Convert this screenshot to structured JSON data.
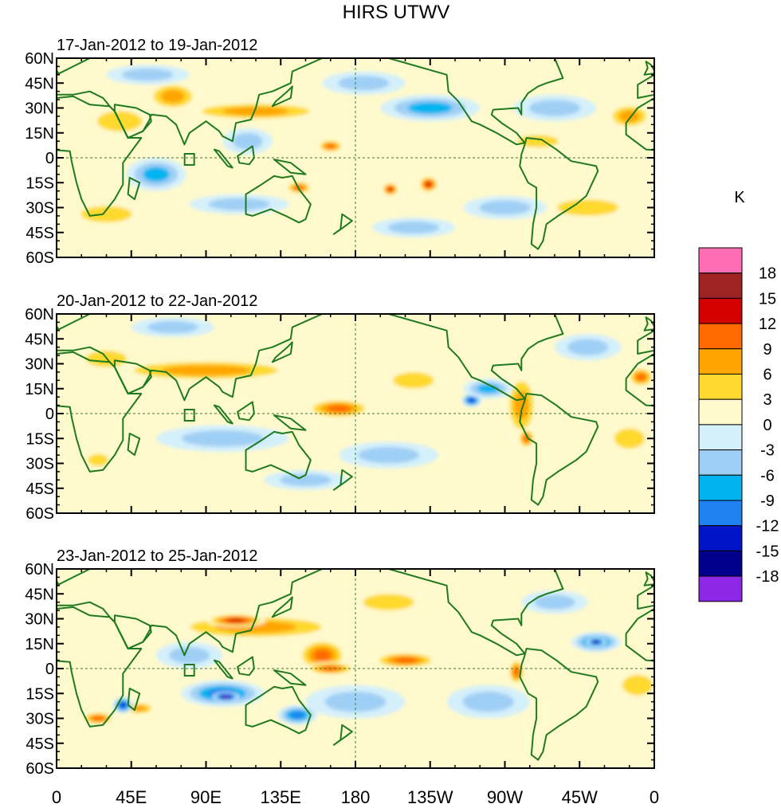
{
  "chart_data": {
    "type": "heatmap",
    "title": "HIRS UTWV",
    "colorbar": {
      "unit_label": "K",
      "levels": [
        "18",
        "15",
        "12",
        "9",
        "6",
        "3",
        "0",
        "-3",
        "-6",
        "-9",
        "-12",
        "-15",
        "-18"
      ],
      "level_values": [
        18,
        15,
        12,
        9,
        6,
        3,
        0,
        -3,
        -6,
        -9,
        -12,
        -15,
        -18
      ],
      "colors": [
        "#ff6eb4",
        "#9e2424",
        "#d40000",
        "#ff6a00",
        "#ffa500",
        "#ffd92f",
        "#fffacd",
        "#d4f0fb",
        "#a0cff5",
        "#00b4f0",
        "#1e82f0",
        "#0014c8",
        "#00008c",
        "#8c28e6"
      ],
      "placement": "right"
    },
    "x_ticks": [
      "0",
      "45E",
      "90E",
      "135E",
      "180",
      "135W",
      "90W",
      "45W",
      "0"
    ],
    "x_tick_lon": [
      0,
      45,
      90,
      135,
      180,
      225,
      270,
      315,
      360
    ],
    "y_ticks": [
      "60N",
      "45N",
      "30N",
      "15N",
      "0",
      "15S",
      "30S",
      "45S",
      "60S"
    ],
    "y_tick_lat": [
      60,
      45,
      30,
      15,
      0,
      -15,
      -30,
      -45,
      -60
    ],
    "xlim": [
      0,
      360
    ],
    "ylim": [
      -60,
      60
    ],
    "panels": [
      {
        "period": "17-Jan-2012 to 19-Jan-2012",
        "anomalies": [
          {
            "lon": 38,
            "lat": 22,
            "rx": 22,
            "ry": 10,
            "v": 5
          },
          {
            "lon": 68,
            "lat": 39,
            "rx": 7,
            "ry": 6,
            "v": 14
          },
          {
            "lon": 70,
            "lat": 37,
            "rx": 16,
            "ry": 9,
            "v": 9
          },
          {
            "lon": 120,
            "lat": 28,
            "rx": 45,
            "ry": 6,
            "v": 7
          },
          {
            "lon": 165,
            "lat": 7,
            "rx": 8,
            "ry": 4,
            "v": 11
          },
          {
            "lon": 146,
            "lat": -18,
            "rx": 8,
            "ry": 4,
            "v": 11
          },
          {
            "lon": 201,
            "lat": -19,
            "rx": 5,
            "ry": 4,
            "v": 13
          },
          {
            "lon": 224,
            "lat": -16,
            "rx": 6,
            "ry": 5,
            "v": 14
          },
          {
            "lon": 290,
            "lat": 10,
            "rx": 20,
            "ry": 6,
            "v": 5
          },
          {
            "lon": 345,
            "lat": 25,
            "rx": 14,
            "ry": 8,
            "v": 7
          },
          {
            "lon": 30,
            "lat": -34,
            "rx": 25,
            "ry": 8,
            "v": 5
          },
          {
            "lon": 320,
            "lat": -30,
            "rx": 30,
            "ry": 8,
            "v": 4
          },
          {
            "lon": 60,
            "lat": -10,
            "rx": 18,
            "ry": 10,
            "v": -7
          },
          {
            "lon": 110,
            "lat": -28,
            "rx": 30,
            "ry": 6,
            "v": -6
          },
          {
            "lon": 225,
            "lat": 30,
            "rx": 30,
            "ry": 8,
            "v": -9
          },
          {
            "lon": 185,
            "lat": 45,
            "rx": 25,
            "ry": 7,
            "v": -6
          },
          {
            "lon": 115,
            "lat": 10,
            "rx": 15,
            "ry": 8,
            "v": -5
          },
          {
            "lon": 55,
            "lat": 50,
            "rx": 25,
            "ry": 6,
            "v": -5
          },
          {
            "lon": 300,
            "lat": 30,
            "rx": 25,
            "ry": 8,
            "v": -5
          },
          {
            "lon": 270,
            "lat": -30,
            "rx": 25,
            "ry": 7,
            "v": -6
          },
          {
            "lon": 215,
            "lat": -42,
            "rx": 25,
            "ry": 6,
            "v": -5
          }
        ]
      },
      {
        "period": "20-Jan-2012 to 22-Jan-2012",
        "anomalies": [
          {
            "lon": 90,
            "lat": 26,
            "rx": 60,
            "ry": 7,
            "v": 8
          },
          {
            "lon": 30,
            "lat": 33,
            "rx": 20,
            "ry": 8,
            "v": 5
          },
          {
            "lon": 170,
            "lat": 3,
            "rx": 20,
            "ry": 6,
            "v": 10
          },
          {
            "lon": 215,
            "lat": 20,
            "rx": 20,
            "ry": 8,
            "v": 6
          },
          {
            "lon": 280,
            "lat": 5,
            "rx": 10,
            "ry": 20,
            "v": 7
          },
          {
            "lon": 283,
            "lat": -15,
            "rx": 5,
            "ry": 6,
            "v": 11
          },
          {
            "lon": 352,
            "lat": 22,
            "rx": 8,
            "ry": 6,
            "v": 10
          },
          {
            "lon": 25,
            "lat": -28,
            "rx": 10,
            "ry": 6,
            "v": 6
          },
          {
            "lon": 345,
            "lat": -15,
            "rx": 15,
            "ry": 10,
            "v": 4
          },
          {
            "lon": 250,
            "lat": 8,
            "rx": 6,
            "ry": 4,
            "v": -13
          },
          {
            "lon": 260,
            "lat": 15,
            "rx": 15,
            "ry": 6,
            "v": -8
          },
          {
            "lon": 100,
            "lat": -15,
            "rx": 40,
            "ry": 8,
            "v": -6
          },
          {
            "lon": 200,
            "lat": -25,
            "rx": 30,
            "ry": 8,
            "v": -5
          },
          {
            "lon": 70,
            "lat": 52,
            "rx": 25,
            "ry": 6,
            "v": -4
          },
          {
            "lon": 320,
            "lat": 40,
            "rx": 20,
            "ry": 8,
            "v": -5
          },
          {
            "lon": 150,
            "lat": -40,
            "rx": 25,
            "ry": 6,
            "v": -5
          }
        ]
      },
      {
        "period": "23-Jan-2012 to 25-Jan-2012",
        "anomalies": [
          {
            "lon": 120,
            "lat": 25,
            "rx": 55,
            "ry": 8,
            "v": 9
          },
          {
            "lon": 108,
            "lat": 29,
            "rx": 18,
            "ry": 4,
            "v": 14
          },
          {
            "lon": 160,
            "lat": 8,
            "rx": 15,
            "ry": 10,
            "v": 10
          },
          {
            "lon": 210,
            "lat": 5,
            "rx": 20,
            "ry": 5,
            "v": 10
          },
          {
            "lon": 165,
            "lat": 0,
            "rx": 15,
            "ry": 4,
            "v": 11
          },
          {
            "lon": 277,
            "lat": -2,
            "rx": 5,
            "ry": 8,
            "v": 12
          },
          {
            "lon": 25,
            "lat": -30,
            "rx": 10,
            "ry": 4,
            "v": 11
          },
          {
            "lon": 50,
            "lat": -24,
            "rx": 10,
            "ry": 4,
            "v": 8
          },
          {
            "lon": 200,
            "lat": 40,
            "rx": 25,
            "ry": 8,
            "v": 5
          },
          {
            "lon": 350,
            "lat": -10,
            "rx": 15,
            "ry": 10,
            "v": 5
          },
          {
            "lon": 325,
            "lat": 16,
            "rx": 15,
            "ry": 6,
            "v": -12
          },
          {
            "lon": 325,
            "lat": 16,
            "rx": 6,
            "ry": 3,
            "v": -16
          },
          {
            "lon": 100,
            "lat": -15,
            "rx": 25,
            "ry": 8,
            "v": -11
          },
          {
            "lon": 102,
            "lat": -17,
            "rx": 8,
            "ry": 3,
            "v": -19
          },
          {
            "lon": 145,
            "lat": -28,
            "rx": 12,
            "ry": 6,
            "v": -12
          },
          {
            "lon": 40,
            "lat": -22,
            "rx": 6,
            "ry": 5,
            "v": -13
          },
          {
            "lon": 80,
            "lat": 8,
            "rx": 20,
            "ry": 8,
            "v": -6
          },
          {
            "lon": 180,
            "lat": -20,
            "rx": 30,
            "ry": 10,
            "v": -6
          },
          {
            "lon": 260,
            "lat": -20,
            "rx": 25,
            "ry": 10,
            "v": -5
          },
          {
            "lon": 300,
            "lat": 40,
            "rx": 20,
            "ry": 7,
            "v": -6
          }
        ]
      }
    ]
  }
}
